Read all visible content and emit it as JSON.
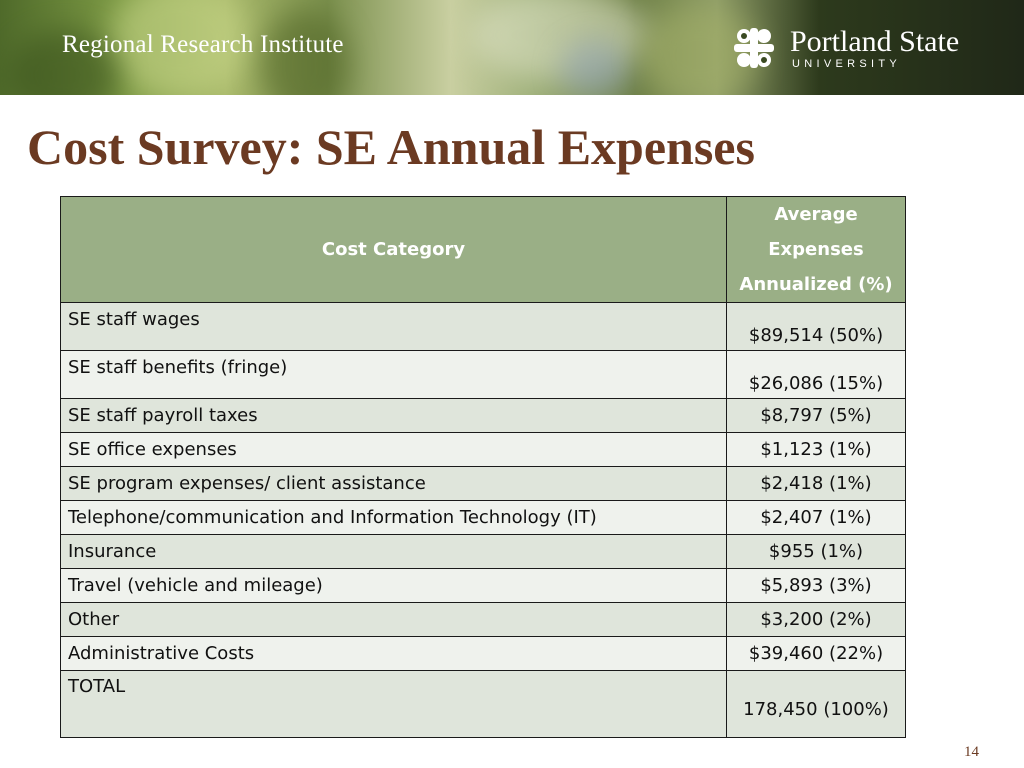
{
  "header": {
    "institute": "Regional Research Institute",
    "university_name": "Portland State",
    "university_sub": "UNIVERSITY"
  },
  "title": "Cost Survey: SE Annual Expenses",
  "table": {
    "col_category": "Cost Category",
    "col_avg_lines": [
      "Average",
      "Expenses",
      "Annualized (%)"
    ],
    "rows": [
      {
        "category": "SE staff wages",
        "value": "$89,514 (50%)"
      },
      {
        "category": "SE staff benefits (fringe)",
        "value": "$26,086 (15%)"
      },
      {
        "category": "SE staff payroll taxes",
        "value": "$8,797 (5%)"
      },
      {
        "category": "SE office expenses",
        "value": "$1,123 (1%)"
      },
      {
        "category": "SE program expenses/ client assistance",
        "value": "$2,418 (1%)"
      },
      {
        "category": "Telephone/communication and Information Technology (IT)",
        "value": "$2,407 (1%)"
      },
      {
        "category": "Insurance",
        "value": "$955 (1%)"
      },
      {
        "category": "Travel (vehicle and mileage)",
        "value": "$5,893 (3%)"
      },
      {
        "category": "Other",
        "value": "$3,200 (2%)"
      },
      {
        "category": "Administrative Costs",
        "value": "$39,460 (22%)"
      },
      {
        "category": "TOTAL",
        "value": "178,450 (100%)"
      }
    ]
  },
  "page_number": "14",
  "colors": {
    "title": "#6b3a22",
    "header_fill": "#9aaf86",
    "row_fill_a": "#dfe5db",
    "row_fill_b": "#eff2ed"
  }
}
